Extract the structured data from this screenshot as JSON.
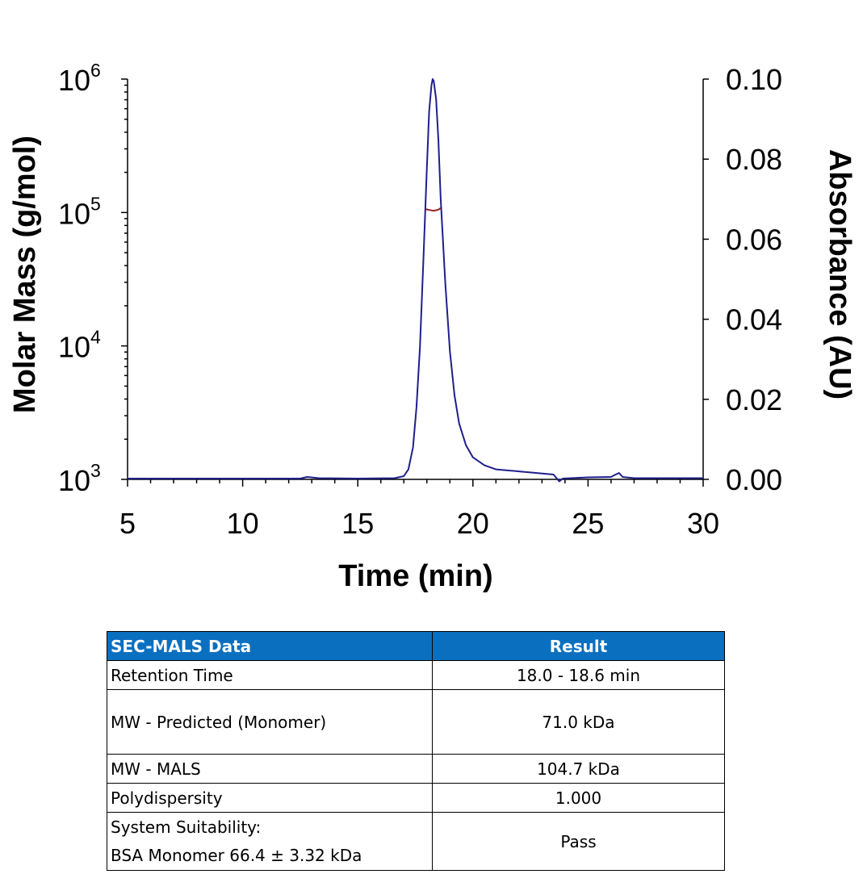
{
  "chart_data": {
    "type": "line",
    "xlabel": "Time (min)",
    "ylabel_left": "Molar Mass (g/mol)",
    "ylabel_right": "Absorbance (AU)",
    "x_ticks": [
      "5",
      "10",
      "15",
      "20",
      "25",
      "30"
    ],
    "xlim": [
      5,
      30
    ],
    "y_left_scale": "log",
    "y_left_lim": [
      1000,
      1000000
    ],
    "y_left_ticks": [
      {
        "base": "10",
        "exp": "3"
      },
      {
        "base": "10",
        "exp": "4"
      },
      {
        "base": "10",
        "exp": "5"
      },
      {
        "base": "10",
        "exp": "6"
      }
    ],
    "y_right_lim": [
      0.0,
      0.1
    ],
    "y_right_ticks": [
      "0.00",
      "0.02",
      "0.04",
      "0.06",
      "0.08",
      "0.10"
    ],
    "grid": false,
    "series": [
      {
        "role": "absorbance",
        "color": "#1f1f8c",
        "axis": "right",
        "points": [
          [
            5.0,
            0.0002
          ],
          [
            10.0,
            0.0002
          ],
          [
            12.5,
            0.0002
          ],
          [
            12.8,
            0.0006
          ],
          [
            13.3,
            0.0003
          ],
          [
            15.0,
            0.0002
          ],
          [
            16.6,
            0.0003
          ],
          [
            17.0,
            0.0008
          ],
          [
            17.2,
            0.0025
          ],
          [
            17.4,
            0.008
          ],
          [
            17.55,
            0.018
          ],
          [
            17.7,
            0.033
          ],
          [
            17.85,
            0.055
          ],
          [
            18.0,
            0.078
          ],
          [
            18.1,
            0.092
          ],
          [
            18.2,
            0.0985
          ],
          [
            18.25,
            0.1
          ],
          [
            18.3,
            0.0995
          ],
          [
            18.4,
            0.095
          ],
          [
            18.5,
            0.085
          ],
          [
            18.6,
            0.07
          ],
          [
            18.8,
            0.049
          ],
          [
            19.0,
            0.032
          ],
          [
            19.2,
            0.021
          ],
          [
            19.4,
            0.014
          ],
          [
            19.7,
            0.0085
          ],
          [
            20.0,
            0.0055
          ],
          [
            20.5,
            0.0035
          ],
          [
            21.0,
            0.0025
          ],
          [
            22.0,
            0.002
          ],
          [
            23.5,
            0.0012
          ],
          [
            23.75,
            -0.0005
          ],
          [
            23.9,
            0.0002
          ],
          [
            25.0,
            0.0005
          ],
          [
            26.0,
            0.0006
          ],
          [
            26.2,
            0.0012
          ],
          [
            26.35,
            0.0016
          ],
          [
            26.5,
            0.0006
          ],
          [
            27.0,
            0.0003
          ],
          [
            30.0,
            0.0003
          ]
        ]
      },
      {
        "role": "molar-mass",
        "color": "#9b1c1c",
        "axis": "left",
        "points": [
          [
            17.95,
            106000
          ],
          [
            18.1,
            104500
          ],
          [
            18.3,
            103000
          ],
          [
            18.5,
            105000
          ],
          [
            18.6,
            108000
          ]
        ]
      }
    ]
  },
  "table": {
    "header": {
      "col1": "SEC-MALS Data",
      "col2": "Result"
    },
    "rows": {
      "retention": {
        "label": "Retention Time",
        "value": "18.0 - 18.6 min"
      },
      "predicted": {
        "label": "MW - Predicted (Monomer)",
        "value": "71.0 kDa"
      },
      "mals": {
        "label": "MW - MALS",
        "value": "104.7 kDa"
      },
      "polydispersity": {
        "label": "Polydispersity",
        "value": "1.000"
      },
      "suitability": {
        "label_line1": "System Suitability:",
        "label_line2": "BSA Monomer 66.4 ± 3.32 kDa",
        "value": "Pass"
      }
    }
  }
}
